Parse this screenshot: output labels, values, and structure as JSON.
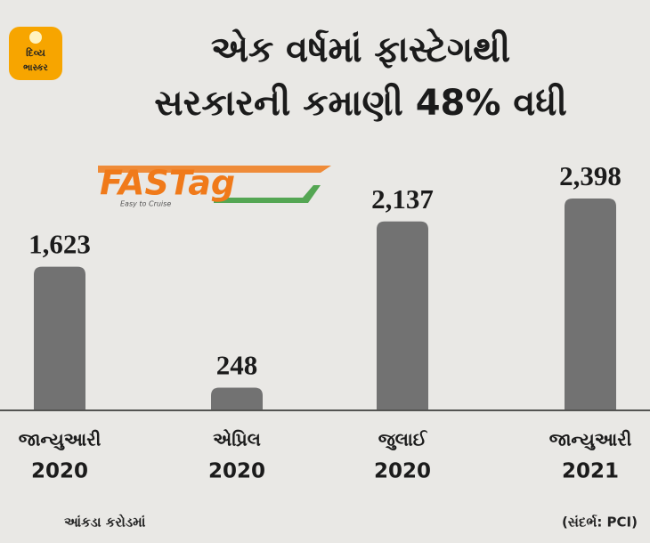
{
  "logo": {
    "lines": [
      "દિવ્ય",
      "ભાસ્કર"
    ]
  },
  "fastag_logo": {
    "name": "FASTag",
    "tagline": "Easy to Cruise"
  },
  "chart_data": {
    "type": "bar",
    "title": [
      "એક વર્ષમાં ફાસ્ટેગથી",
      "સરકારની કમાણી 48% વધી"
    ],
    "categories": [
      [
        "જાન્યુઆરી",
        "2020"
      ],
      [
        "એપ્રિલ",
        "2020"
      ],
      [
        "જુલાઈ",
        "2020"
      ],
      [
        "જાન્યુઆરી",
        "2021"
      ]
    ],
    "values": [
      1623,
      248,
      2137,
      2398
    ],
    "value_labels": [
      "1,623",
      "248",
      "2,137",
      "2,398"
    ],
    "color": "#727272",
    "unit_note": "આંકડા કરોડમાં",
    "source": "(સંદર્ભ: PCI)"
  }
}
